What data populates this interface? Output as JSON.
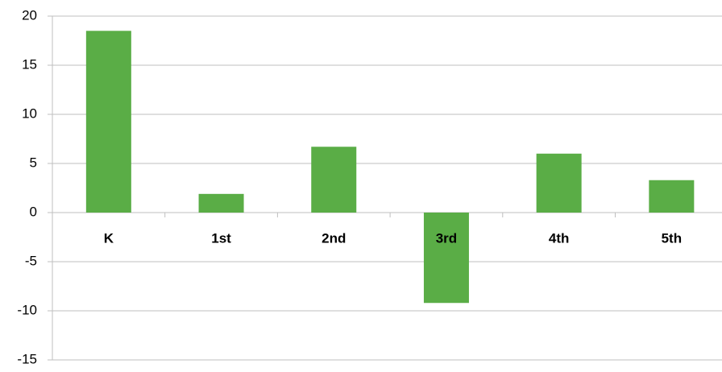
{
  "chart_data": {
    "type": "bar",
    "categories": [
      "K",
      "1st",
      "2nd",
      "3rd",
      "4th",
      "5th"
    ],
    "values": [
      18.5,
      1.9,
      6.7,
      -9.2,
      6.0,
      3.3
    ],
    "color": "#5aad46",
    "ylim": [
      -15,
      20
    ],
    "yticks": [
      -15,
      -10,
      -5,
      0,
      5,
      10,
      15,
      20
    ],
    "grid": true
  }
}
